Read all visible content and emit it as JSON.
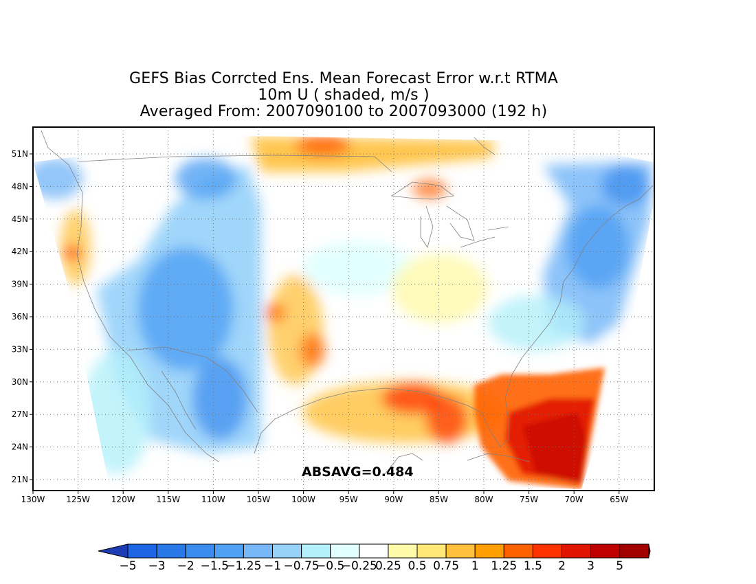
{
  "title": {
    "line1": "GEFS Bias Corrcted Ens. Mean Forecast Error w.r.t RTMA",
    "line2": "10m U ( shaded, m/s )",
    "line3": "Averaged From: 2007090100 to 2007093000 (192 h)"
  },
  "absavg": "ABSAVG=0.484",
  "map": {
    "lat_labels": [
      "51N",
      "48N",
      "45N",
      "42N",
      "39N",
      "36N",
      "33N",
      "30N",
      "27N",
      "24N",
      "21N"
    ],
    "lon_labels": [
      "130W",
      "125W",
      "120W",
      "115W",
      "110W",
      "105W",
      "100W",
      "95W",
      "90W",
      "85W",
      "80W",
      "75W",
      "70W",
      "65W"
    ],
    "grid": "dotted",
    "projection": "lat-lon"
  },
  "colorbar": {
    "labels": [
      "-5",
      "-3",
      "-2",
      "-1.5",
      "-1.25",
      "-1",
      "-0.75",
      "-0.5",
      "-0.25",
      "0.25",
      "0.5",
      "0.75",
      "1",
      "1.25",
      "1.5",
      "2",
      "3",
      "5"
    ],
    "colors": [
      "#1e64e6",
      "#2878e8",
      "#3c8cf0",
      "#50a0f4",
      "#78b8f8",
      "#96d2fa",
      "#b4f0fa",
      "#e1ffff",
      "#ffffff",
      "#fffaaa",
      "#ffe878",
      "#ffc03c",
      "#ffa000",
      "#ff6000",
      "#ff3200",
      "#e11400",
      "#c00000",
      "#a50000"
    ],
    "min_extend_color": "#1e3cb4",
    "max_extend_color": "#8c0000"
  }
}
